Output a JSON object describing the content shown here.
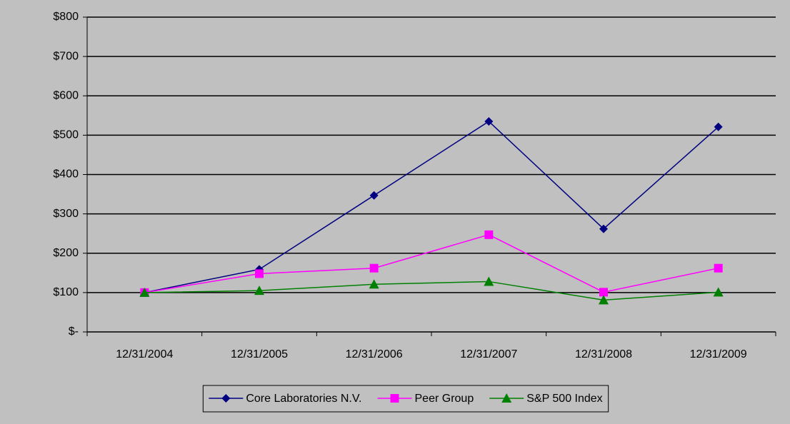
{
  "chart_data": {
    "type": "line",
    "categories": [
      "12/31/2004",
      "12/31/2005",
      "12/31/2006",
      "12/31/2007",
      "12/31/2008",
      "12/31/2009"
    ],
    "series": [
      {
        "name": "Core Laboratories N.V.",
        "color": "#000080",
        "marker": "diamond",
        "values": [
          100,
          159,
          347,
          535,
          262,
          521
        ]
      },
      {
        "name": "Peer Group",
        "color": "#ff00ff",
        "marker": "square",
        "values": [
          100,
          148,
          162,
          247,
          101,
          162
        ]
      },
      {
        "name": "S&P 500 Index",
        "color": "#008000",
        "marker": "triangle",
        "values": [
          100,
          105,
          121,
          128,
          81,
          101
        ]
      }
    ],
    "ylim": [
      0,
      800
    ],
    "yticks": [
      {
        "value": 0,
        "label": "$-"
      },
      {
        "value": 100,
        "label": "$100"
      },
      {
        "value": 200,
        "label": "$200"
      },
      {
        "value": 300,
        "label": "$300"
      },
      {
        "value": 400,
        "label": "$400"
      },
      {
        "value": 500,
        "label": "$500"
      },
      {
        "value": 600,
        "label": "$600"
      },
      {
        "value": 700,
        "label": "$700"
      },
      {
        "value": 800,
        "label": "$800"
      }
    ],
    "grid": true,
    "legend": "bottom"
  }
}
